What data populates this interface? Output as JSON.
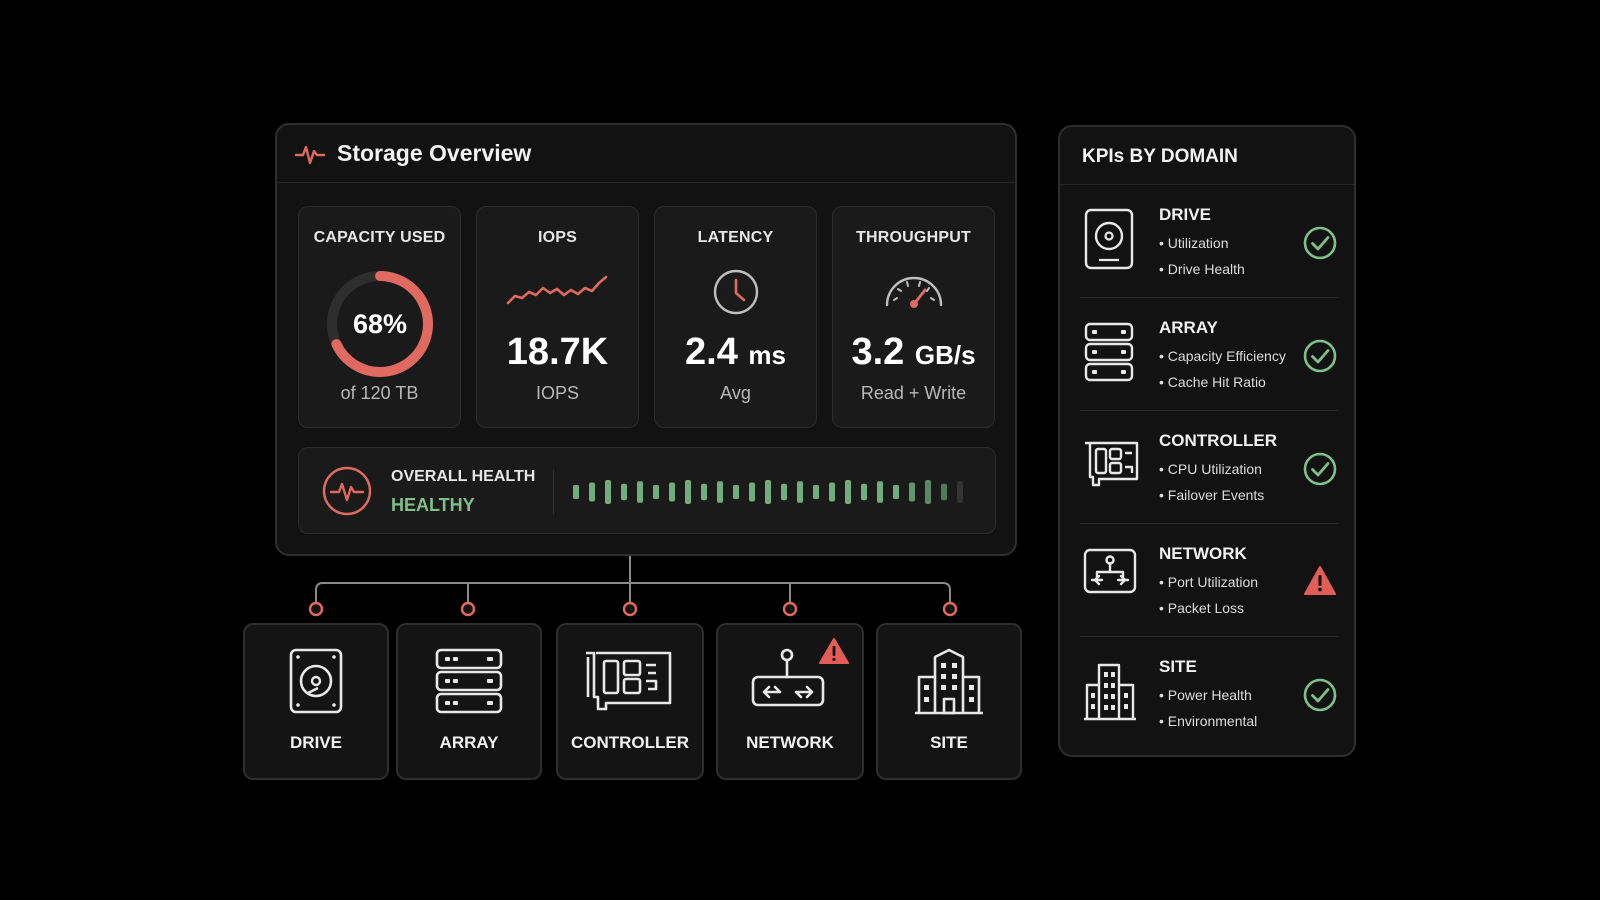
{
  "overview": {
    "title": "Storage Overview",
    "metrics": [
      {
        "label": "CAPACITY USED",
        "value": "68%",
        "sub": "of 120 TB",
        "percent": 68
      },
      {
        "label": "IOPS",
        "value": "18.7K",
        "unit": "",
        "sub": "IOPS"
      },
      {
        "label": "LATENCY",
        "value": "2.4",
        "unit": "ms",
        "sub": "Avg"
      },
      {
        "label": "THROUGHPUT",
        "value": "3.2",
        "unit": "GB/s",
        "sub": "Read + Write"
      }
    ],
    "health": {
      "label": "OVERALL HEALTH",
      "status": "HEALTHY"
    }
  },
  "devices": [
    {
      "label": "DRIVE",
      "icon": "drive-icon",
      "alert": false
    },
    {
      "label": "ARRAY",
      "icon": "array-icon",
      "alert": false
    },
    {
      "label": "CONTROLLER",
      "icon": "controller-icon",
      "alert": false
    },
    {
      "label": "NETWORK",
      "icon": "network-icon",
      "alert": true
    },
    {
      "label": "SITE",
      "icon": "building-icon",
      "alert": false
    }
  ],
  "kpis": {
    "title": "KPIs BY DOMAIN",
    "domains": [
      {
        "name": "DRIVE",
        "items": [
          "Utilization",
          "Drive Health"
        ],
        "status": "ok"
      },
      {
        "name": "ARRAY",
        "items": [
          "Capacity Efficiency",
          "Cache Hit Ratio"
        ],
        "status": "ok"
      },
      {
        "name": "CONTROLLER",
        "items": [
          "CPU Utilization",
          "Failover Events"
        ],
        "status": "ok"
      },
      {
        "name": "NETWORK",
        "items": [
          "Port Utilization",
          "Packet Loss"
        ],
        "status": "warning"
      },
      {
        "name": "SITE",
        "items": [
          "Power Health",
          "Environmental"
        ],
        "status": "ok"
      }
    ]
  },
  "colors": {
    "accent": "#e06a5f",
    "healthy": "#7fc08a",
    "warning": "#e25d55",
    "panel": "#121212",
    "card": "#1a1a1a"
  }
}
